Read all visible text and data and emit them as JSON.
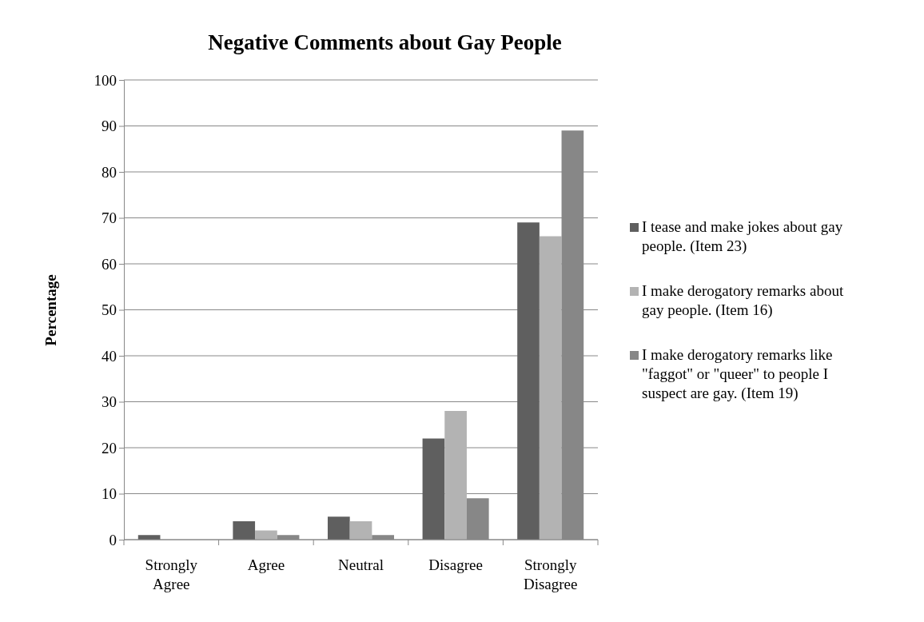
{
  "chart_data": {
    "type": "bar",
    "title": "Negative Comments about Gay People",
    "ylabel": "Percentage",
    "categories": [
      "Strongly Agree",
      "Agree",
      "Neutral",
      "Disagree",
      "Strongly Disagree"
    ],
    "series": [
      {
        "name": "I tease and make jokes about gay people. (Item 23)",
        "color": "#5f5f5f",
        "values": [
          1,
          4,
          5,
          22,
          69
        ]
      },
      {
        "name": "I make derogatory remarks about gay people. (Item 16)",
        "color": "#b3b3b3",
        "values": [
          0,
          2,
          4,
          28,
          66
        ]
      },
      {
        "name": "I make derogatory remarks like \"faggot\" or \"queer\" to people I suspect are gay. (Item 19)",
        "color": "#878787",
        "values": [
          0,
          1,
          1,
          9,
          89
        ]
      }
    ],
    "ylim": [
      0,
      100
    ],
    "yticks": [
      0,
      10,
      20,
      30,
      40,
      50,
      60,
      70,
      80,
      90,
      100
    ],
    "grid": "y",
    "legend": "right"
  }
}
